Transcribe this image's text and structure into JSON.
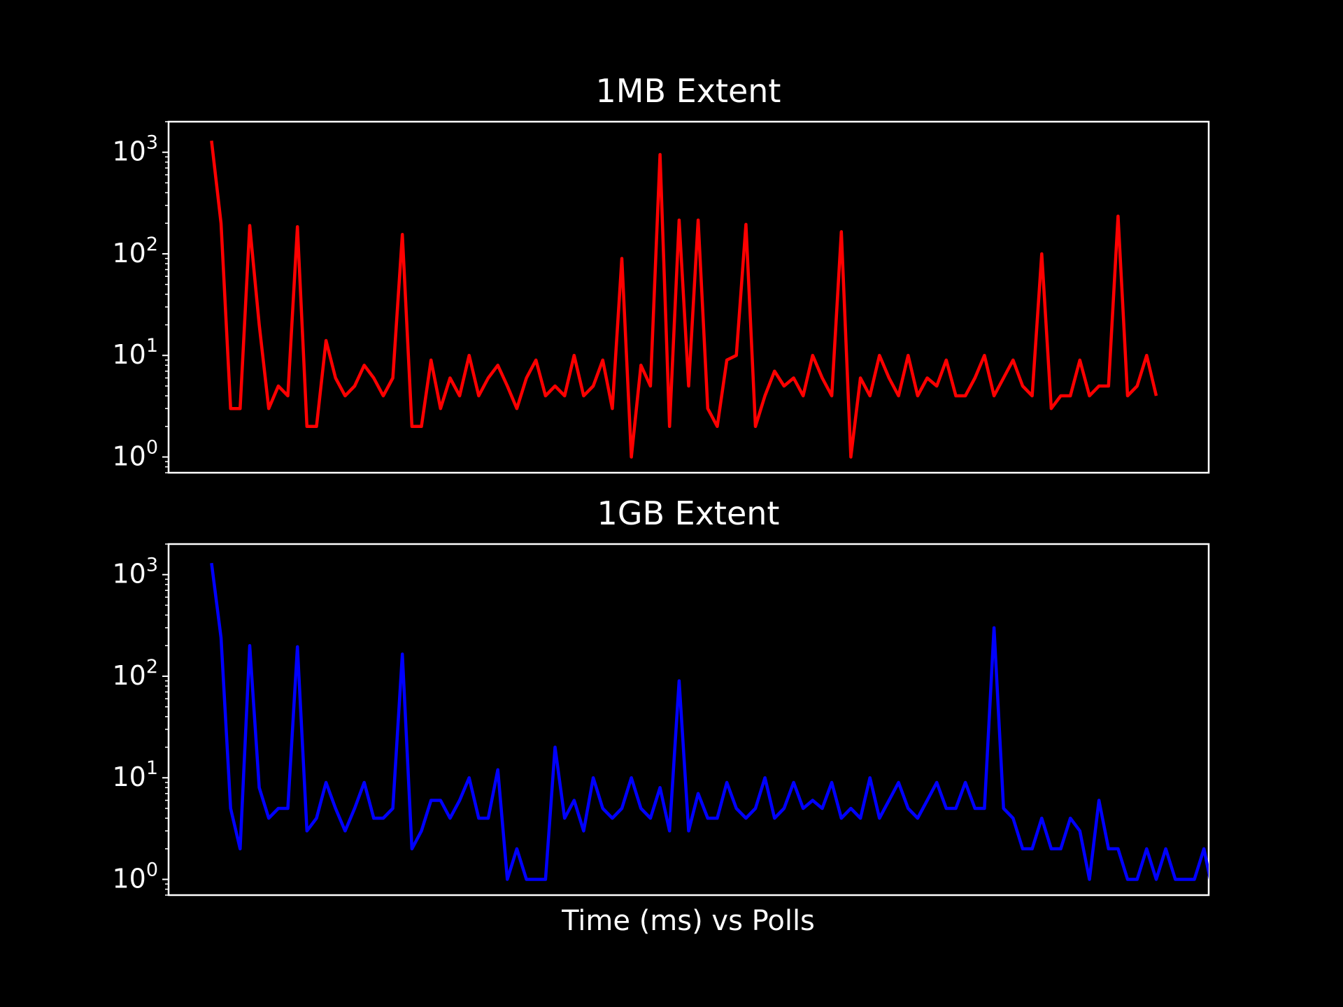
{
  "figure": {
    "background": "#000000",
    "foreground": "#ffffff",
    "xlabel": "Time (ms) vs Polls"
  },
  "chart_data": [
    {
      "type": "line",
      "title": "1MB Extent",
      "xlabel": "",
      "ylabel": "",
      "yscale": "log",
      "ylim": [
        0.7,
        2000
      ],
      "xlim": [
        -4.5,
        104.5
      ],
      "x_tick_labels": false,
      "grid": false,
      "yticks": [
        {
          "base": "10",
          "exp": "0",
          "value": 1
        },
        {
          "base": "10",
          "exp": "1",
          "value": 10
        },
        {
          "base": "10",
          "exp": "2",
          "value": 100
        },
        {
          "base": "10",
          "exp": "3",
          "value": 1000
        }
      ],
      "series": [
        {
          "color": "#ff0000",
          "values": [
            1300,
            200,
            3,
            3,
            190,
            20,
            3,
            5,
            4,
            185,
            2,
            2,
            14,
            6,
            4,
            5,
            8,
            6,
            4,
            6,
            155,
            2,
            2,
            9,
            3,
            6,
            4,
            10,
            4,
            6,
            8,
            5,
            3,
            6,
            9,
            4,
            5,
            4,
            10,
            4,
            5,
            9,
            3,
            90,
            1,
            8,
            5,
            950,
            2,
            215,
            5,
            215,
            3,
            2,
            9,
            10,
            195,
            2,
            4,
            7,
            5,
            6,
            4,
            10,
            6,
            4,
            165,
            1,
            6,
            4,
            10,
            6,
            4,
            10,
            4,
            6,
            5,
            9,
            4,
            4,
            6,
            10,
            4,
            6,
            9,
            5,
            4,
            100,
            3,
            4,
            4,
            9,
            4,
            5,
            5,
            235,
            4,
            5,
            10,
            4
          ]
        }
      ]
    },
    {
      "type": "line",
      "title": "1GB Extent",
      "xlabel": "",
      "ylabel": "",
      "yscale": "log",
      "ylim": [
        0.7,
        2000
      ],
      "xlim": [
        -4.5,
        104.5
      ],
      "x_tick_labels": false,
      "grid": false,
      "yticks": [
        {
          "base": "10",
          "exp": "0",
          "value": 1
        },
        {
          "base": "10",
          "exp": "1",
          "value": 10
        },
        {
          "base": "10",
          "exp": "2",
          "value": 100
        },
        {
          "base": "10",
          "exp": "3",
          "value": 1000
        }
      ],
      "series": [
        {
          "color": "#0000ff",
          "values": [
            1300,
            240,
            5,
            2,
            200,
            8,
            4,
            5,
            5,
            195,
            3,
            4,
            9,
            5,
            3,
            5,
            9,
            4,
            4,
            5,
            165,
            2,
            3,
            6,
            6,
            4,
            6,
            10,
            4,
            4,
            12,
            1,
            2,
            1,
            1,
            1,
            20,
            4,
            6,
            3,
            10,
            5,
            4,
            5,
            10,
            5,
            4,
            8,
            3,
            90,
            3,
            7,
            4,
            4,
            9,
            5,
            4,
            5,
            10,
            4,
            5,
            9,
            5,
            6,
            5,
            9,
            4,
            5,
            4,
            10,
            4,
            6,
            9,
            5,
            4,
            6,
            9,
            5,
            5,
            9,
            5,
            5,
            300,
            5,
            4,
            2,
            2,
            4,
            2,
            2,
            4,
            3,
            1,
            6,
            2,
            2,
            1,
            1,
            2,
            1,
            2,
            1,
            1,
            1,
            2,
            0.7
          ]
        }
      ]
    }
  ]
}
